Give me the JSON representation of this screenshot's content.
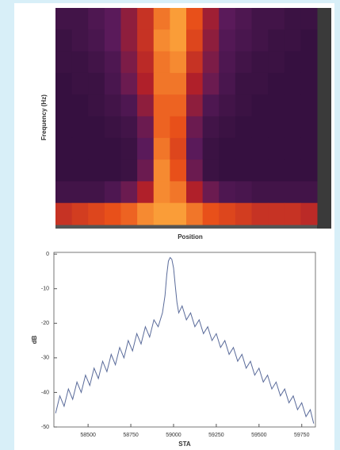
{
  "chart_data": [
    {
      "type": "heatmap",
      "x_label": "Position",
      "y_label": "Frequency (Hz)",
      "colors": [
        "#1e0a2e",
        "#5a1a5a",
        "#b0202a",
        "#e8501a",
        "#ffb040"
      ],
      "z": [
        [
          0.15,
          0.15,
          0.2,
          0.25,
          0.4,
          0.6,
          0.85,
          0.95,
          0.75,
          0.45,
          0.25,
          0.2,
          0.15,
          0.15,
          0.12,
          0.12
        ],
        [
          0.12,
          0.15,
          0.18,
          0.25,
          0.4,
          0.6,
          0.9,
          0.95,
          0.7,
          0.4,
          0.22,
          0.18,
          0.15,
          0.12,
          0.12,
          0.1
        ],
        [
          0.12,
          0.12,
          0.15,
          0.2,
          0.35,
          0.55,
          0.85,
          0.9,
          0.6,
          0.35,
          0.2,
          0.15,
          0.12,
          0.12,
          0.1,
          0.1
        ],
        [
          0.1,
          0.12,
          0.12,
          0.18,
          0.3,
          0.5,
          0.85,
          0.85,
          0.5,
          0.3,
          0.18,
          0.12,
          0.12,
          0.1,
          0.1,
          0.1
        ],
        [
          0.1,
          0.1,
          0.12,
          0.15,
          0.2,
          0.4,
          0.8,
          0.8,
          0.4,
          0.2,
          0.15,
          0.12,
          0.1,
          0.1,
          0.1,
          0.1
        ],
        [
          0.1,
          0.1,
          0.1,
          0.12,
          0.15,
          0.3,
          0.8,
          0.75,
          0.3,
          0.15,
          0.12,
          0.1,
          0.1,
          0.1,
          0.1,
          0.1
        ],
        [
          0.1,
          0.1,
          0.1,
          0.1,
          0.12,
          0.25,
          0.85,
          0.7,
          0.25,
          0.12,
          0.1,
          0.1,
          0.1,
          0.1,
          0.1,
          0.1
        ],
        [
          0.1,
          0.1,
          0.1,
          0.1,
          0.12,
          0.3,
          0.9,
          0.75,
          0.3,
          0.12,
          0.1,
          0.1,
          0.1,
          0.1,
          0.1,
          0.1
        ],
        [
          0.15,
          0.15,
          0.15,
          0.2,
          0.3,
          0.5,
          0.9,
          0.85,
          0.5,
          0.3,
          0.2,
          0.18,
          0.15,
          0.15,
          0.15,
          0.15
        ],
        [
          0.6,
          0.65,
          0.7,
          0.75,
          0.8,
          0.9,
          0.95,
          0.95,
          0.85,
          0.75,
          0.7,
          0.65,
          0.6,
          0.6,
          0.6,
          0.55
        ]
      ]
    },
    {
      "type": "line",
      "x_label": "STA",
      "y_label": "dB",
      "x": [
        58310,
        58335,
        58360,
        58385,
        58410,
        58435,
        58460,
        58485,
        58510,
        58535,
        58560,
        58585,
        58610,
        58635,
        58660,
        58685,
        58710,
        58735,
        58760,
        58785,
        58810,
        58835,
        58860,
        58885,
        58910,
        58935,
        58950,
        58960,
        58970,
        58980,
        58990,
        59000,
        59010,
        59020,
        59030,
        59050,
        59075,
        59100,
        59125,
        59150,
        59175,
        59200,
        59225,
        59250,
        59275,
        59300,
        59325,
        59350,
        59375,
        59400,
        59425,
        59450,
        59475,
        59500,
        59525,
        59550,
        59575,
        59600,
        59625,
        59650,
        59675,
        59700,
        59725,
        59750,
        59775,
        59800,
        59820
      ],
      "series": [
        {
          "color": "#5a6b9a",
          "values": [
            -46,
            -41,
            -44,
            -39,
            -42,
            -37,
            -40,
            -35,
            -38,
            -33,
            -36,
            -31,
            -34,
            -29,
            -32,
            -27,
            -30,
            -25,
            -28,
            -23,
            -26,
            -21,
            -24,
            -19,
            -21,
            -17,
            -12,
            -6,
            -2,
            -1,
            -1.5,
            -4,
            -9,
            -14,
            -17,
            -15,
            -19,
            -17,
            -21,
            -19,
            -23,
            -21,
            -25,
            -23,
            -27,
            -25,
            -29,
            -27,
            -31,
            -29,
            -33,
            -31,
            -35,
            -33,
            -37,
            -35,
            -39,
            -37,
            -41,
            -39,
            -43,
            -41,
            -45,
            -43,
            -47,
            -45,
            -49
          ]
        }
      ],
      "xlim": [
        58300,
        59830
      ],
      "xticks": [
        58500,
        58750,
        59000,
        59250,
        59500,
        59750
      ],
      "ylim": [
        -50,
        0.5
      ],
      "yticks": [
        0,
        -10,
        -20,
        -30,
        -40,
        -50
      ]
    }
  ]
}
